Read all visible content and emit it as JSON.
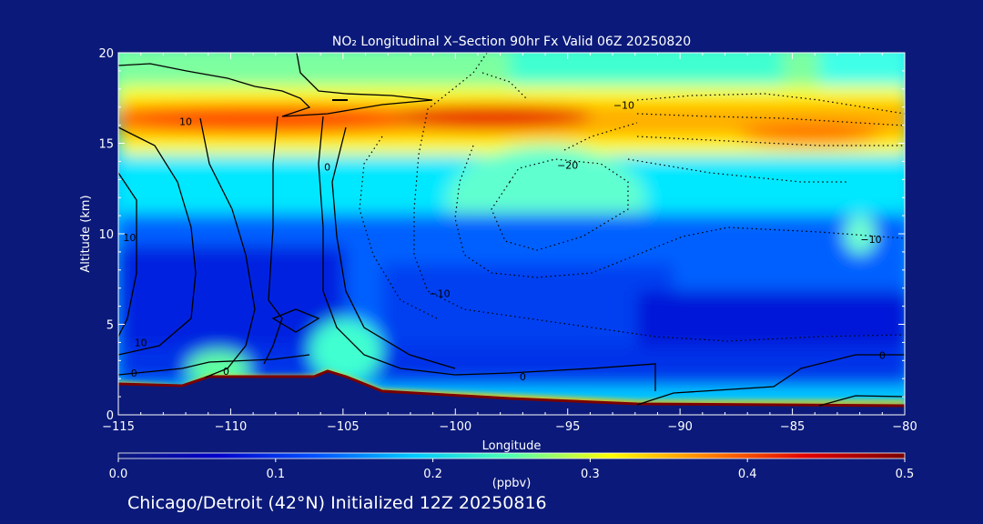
{
  "chart_data": {
    "type": "heatmap",
    "title": "NO₂ Longitudinal X–Section 90hr  Fx Valid 06Z 20250820",
    "xlabel": "Longitude",
    "ylabel": "Altitude (km)",
    "xlim": [
      -115,
      -80
    ],
    "ylim": [
      0,
      20
    ],
    "xticks": [
      "−115",
      "−110",
      "−105",
      "−100",
      "−95",
      "−90",
      "−85",
      "−80"
    ],
    "xtick_values": [
      -115,
      -110,
      -105,
      -100,
      -95,
      -90,
      -85,
      -80
    ],
    "yticks": [
      "0",
      "5",
      "10",
      "15",
      "20"
    ],
    "ytick_values": [
      0,
      5,
      10,
      15,
      20
    ],
    "colorbar": {
      "label": "(ppbv)",
      "min": 0.0,
      "max": 0.5,
      "ticks": [
        "0.0",
        "0.1",
        "0.2",
        "0.3",
        "0.4",
        "0.5"
      ],
      "tick_values": [
        0.0,
        0.1,
        0.2,
        0.3,
        0.4,
        0.5
      ],
      "colors": [
        "#0b1a7a",
        "#0000c8",
        "#0050ff",
        "#00c8ff",
        "#50ffb0",
        "#ffff00",
        "#ff8000",
        "#e00000",
        "#7a0000"
      ]
    },
    "contour_labels": [
      {
        "text": "10",
        "x": -112,
        "y": 16.2
      },
      {
        "text": "10",
        "x": -114.5,
        "y": 9.8
      },
      {
        "text": "10",
        "x": -114,
        "y": 4.0
      },
      {
        "text": "0",
        "x": -114.3,
        "y": 2.3
      },
      {
        "text": "0",
        "x": -110.2,
        "y": 2.4
      },
      {
        "text": "0",
        "x": -105.7,
        "y": 13.7
      },
      {
        "text": "−10",
        "x": -92.5,
        "y": 17.1
      },
      {
        "text": "−20",
        "x": -95,
        "y": 13.8
      },
      {
        "text": "−10",
        "x": -100.7,
        "y": 6.7
      },
      {
        "text": "0",
        "x": -97,
        "y": 2.1
      },
      {
        "text": "−10",
        "x": -81.5,
        "y": 9.7
      },
      {
        "text": "0",
        "x": -81,
        "y": 3.3
      }
    ],
    "grid": false
  },
  "bottom_title": "Chicago/Detroit (42°N) Initialized 12Z 20250816"
}
